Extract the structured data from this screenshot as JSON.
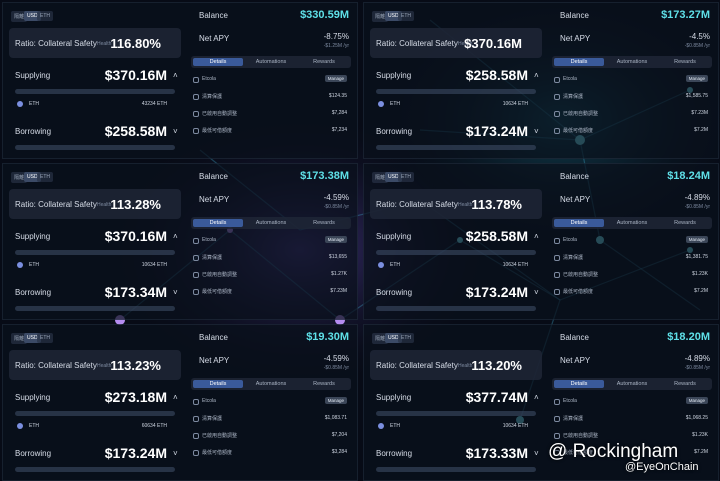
{
  "toggles": [
    "隔離",
    "USD",
    "ETH"
  ],
  "labels": {
    "ratio": "Ratio: Collateral Safety",
    "health": "Health",
    "supplying": "Supplying",
    "borrowing": "Borrowing",
    "asset": "ETH",
    "balance": "Balance",
    "net_apy": "Net APY",
    "manage": "Manage"
  },
  "tabs": [
    "Details",
    "Automations",
    "Rewards"
  ],
  "row_labels": [
    "Etcola",
    "清算保護",
    "已啟用自動調整",
    "最低可借額度"
  ],
  "panels": [
    {
      "ratio": "116.80%",
      "supplying": "$370.16M",
      "asset_amount": "43234 ETH",
      "borrowing": "$258.58M",
      "balance": "$330.59M",
      "net_apy": "-8.75%",
      "apy_sub": "-$1.25M /yr",
      "rows": [
        "",
        "$124.35",
        "$7,284",
        "$7,234"
      ]
    },
    {
      "ratio": "$370.16M",
      "supplying": "$258.58M",
      "asset_amount": "10634 ETH",
      "borrowing": "$173.24M",
      "balance": "$173.27M",
      "net_apy": "-4.5%",
      "apy_sub": "-$0.85M /yr",
      "rows": [
        "",
        "$1,585.75",
        "$7.23M",
        "$7.2M"
      ]
    },
    {
      "ratio": "113.28%",
      "supplying": "$370.16M",
      "asset_amount": "10634 ETH",
      "borrowing": "$173.34M",
      "balance": "$173.38M",
      "net_apy": "-4.59%",
      "apy_sub": "-$0.85M /yr",
      "rows": [
        "",
        "$13,655",
        "$1.27K",
        "$7.23M"
      ]
    },
    {
      "ratio": "113.78%",
      "supplying": "$258.58M",
      "asset_amount": "10634 ETH",
      "borrowing": "$173.24M",
      "balance": "$18.24M",
      "net_apy": "-4.89%",
      "apy_sub": "-$0.85M /yr",
      "rows": [
        "",
        "$1,381.75",
        "$1.23K",
        "$7.2M"
      ]
    },
    {
      "ratio": "113.23%",
      "supplying": "$273.18M",
      "asset_amount": "60634 ETH",
      "borrowing": "$173.24M",
      "balance": "$19.30M",
      "net_apy": "-4.59%",
      "apy_sub": "-$0.85M /yr",
      "rows": [
        "",
        "$1,083.71",
        "$7,204",
        "$3,284"
      ]
    },
    {
      "ratio": "113.20%",
      "supplying": "$377.74M",
      "asset_amount": "10634 ETH",
      "borrowing": "$173.33M",
      "balance": "$18.20M",
      "net_apy": "-4.89%",
      "apy_sub": "-$0.85M /yr",
      "rows": [
        "",
        "$1,068.25",
        "$1.23K",
        "$7.2M"
      ]
    }
  ],
  "watermark": {
    "main": "Rockingham",
    "sub": "@EyeOnChain"
  }
}
